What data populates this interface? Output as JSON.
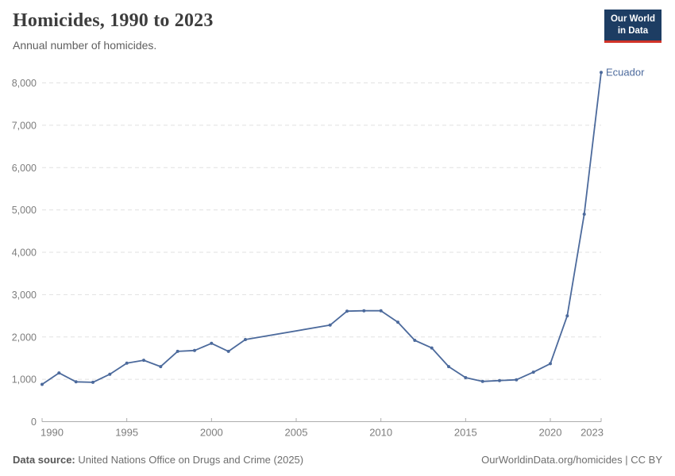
{
  "header": {
    "title": "Homicides, 1990 to 2023",
    "subtitle": "Annual number of homicides.",
    "logo": {
      "line1": "Our World",
      "line2": "in Data"
    }
  },
  "colors": {
    "series_line": "#4C6A9C",
    "logo_background": "#1d3d63",
    "logo_accent": "#d13328",
    "gridline": "#e1e1e1",
    "axis": "#adadad",
    "tick_label": "#7d7d7d"
  },
  "chart_data": {
    "type": "line",
    "title": "Homicides, 1990 to 2023",
    "subtitle": "Annual number of homicides.",
    "xlabel": "",
    "ylabel": "",
    "xlim": [
      1990,
      2023
    ],
    "ylim": [
      0,
      8000
    ],
    "x_ticks": [
      1990,
      1995,
      2000,
      2005,
      2010,
      2015,
      2020,
      2023
    ],
    "y_ticks": [
      0,
      1000,
      2000,
      3000,
      4000,
      5000,
      6000,
      7000,
      8000
    ],
    "grid": "horizontal-dashed",
    "legend_position": "end-of-line-label",
    "series": [
      {
        "name": "Ecuador",
        "color": "#4C6A9C",
        "points": [
          [
            1990,
            880
          ],
          [
            1991,
            1150
          ],
          [
            1992,
            940
          ],
          [
            1993,
            930
          ],
          [
            1994,
            1120
          ],
          [
            1995,
            1380
          ],
          [
            1996,
            1450
          ],
          [
            1997,
            1300
          ],
          [
            1998,
            1660
          ],
          [
            1999,
            1680
          ],
          [
            2000,
            1850
          ],
          [
            2001,
            1660
          ],
          [
            2002,
            1940
          ],
          [
            2007,
            2280
          ],
          [
            2008,
            2610
          ],
          [
            2009,
            2620
          ],
          [
            2010,
            2620
          ],
          [
            2011,
            2350
          ],
          [
            2012,
            1920
          ],
          [
            2013,
            1740
          ],
          [
            2014,
            1300
          ],
          [
            2015,
            1040
          ],
          [
            2016,
            950
          ],
          [
            2017,
            970
          ],
          [
            2018,
            990
          ],
          [
            2019,
            1170
          ],
          [
            2020,
            1370
          ],
          [
            2021,
            2500
          ],
          [
            2022,
            4900
          ],
          [
            2023,
            8250
          ]
        ]
      }
    ]
  },
  "footer": {
    "source_label": "Data source:",
    "source_text": "United Nations Office on Drugs and Crime (2025)",
    "rights": "OurWorldinData.org/homicides | CC BY"
  }
}
